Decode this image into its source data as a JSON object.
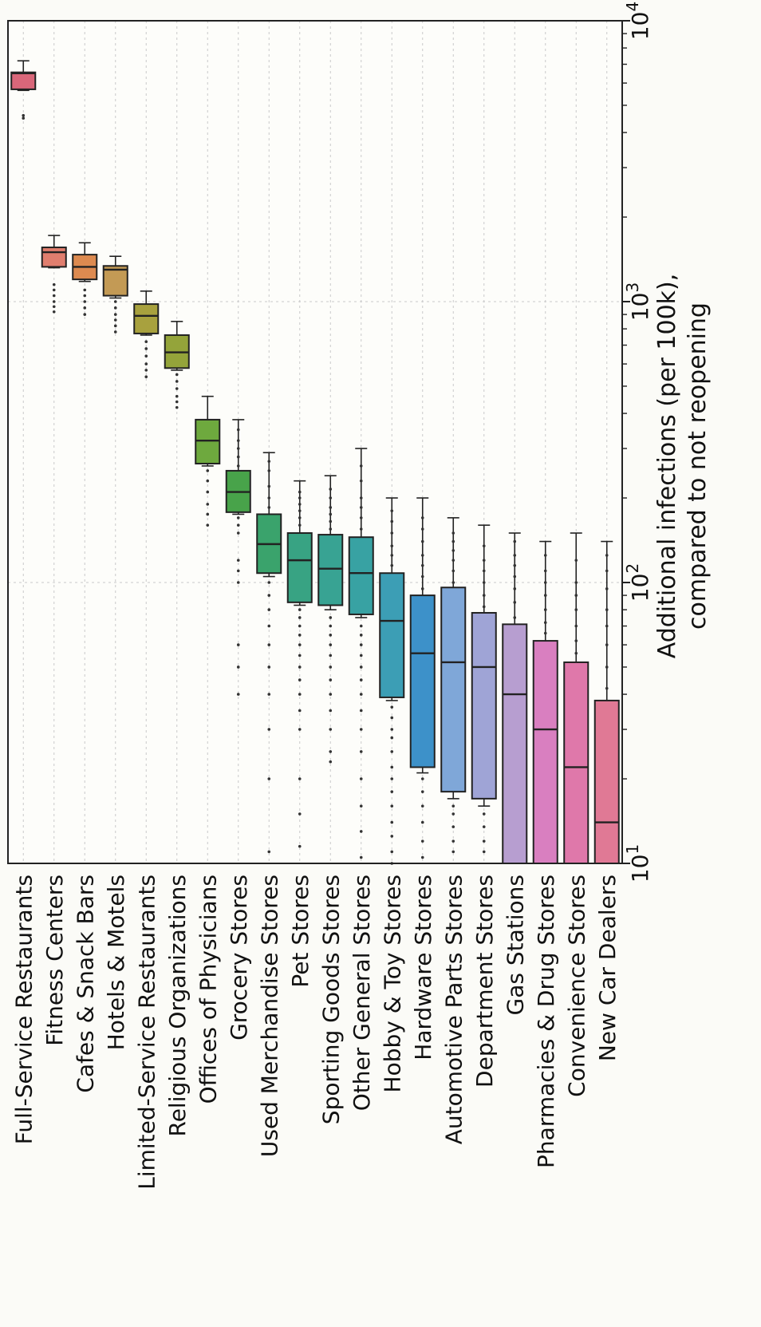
{
  "chart_data": {
    "type": "box",
    "orientation": "rotated-90-clockwise",
    "x_scale": "log",
    "xlim": [
      10,
      10000
    ],
    "xlabel_lines": [
      "Additional infections (per 100k),",
      "compared to not reopening"
    ],
    "ticks": [
      {
        "value": 10,
        "base": "10",
        "exp": "1"
      },
      {
        "value": 100,
        "base": "10",
        "exp": "2"
      },
      {
        "value": 1000,
        "base": "10",
        "exp": "3"
      },
      {
        "value": 10000,
        "base": "10",
        "exp": "4"
      }
    ],
    "grid": true,
    "categories": [
      {
        "label": "Full-Service Restaurants",
        "color": "#d9677a",
        "q1": 5700,
        "median": 6500,
        "q3": 6550,
        "whislo": 5650,
        "whishi": 7200,
        "fliers": [
          4500,
          4600
        ]
      },
      {
        "label": "Fitness Centers",
        "color": "#e07e6e",
        "q1": 1330,
        "median": 1500,
        "q3": 1560,
        "whislo": 1320,
        "whishi": 1720,
        "fliers": [
          920,
          960,
          1000,
          1050,
          1100,
          1150
        ]
      },
      {
        "label": "Cafes & Snack Bars",
        "color": "#dd8a50",
        "q1": 1200,
        "median": 1330,
        "q3": 1470,
        "whislo": 1180,
        "whishi": 1620,
        "fliers": [
          900,
          950,
          1000,
          1050,
          1100
        ]
      },
      {
        "label": "Hotels & Motels",
        "color": "#c39a55",
        "q1": 1050,
        "median": 1300,
        "q3": 1340,
        "whislo": 1030,
        "whishi": 1450,
        "fliers": [
          780,
          820,
          860,
          900,
          950,
          1000
        ]
      },
      {
        "label": "Limited-Service Restaurants",
        "color": "#a8a13e",
        "q1": 770,
        "median": 890,
        "q3": 980,
        "whislo": 760,
        "whishi": 1090,
        "fliers": [
          540,
          570,
          600,
          640,
          680,
          720
        ]
      },
      {
        "label": "Religious Organizations",
        "color": "#94a43a",
        "q1": 580,
        "median": 660,
        "q3": 760,
        "whislo": 570,
        "whishi": 850,
        "fliers": [
          420,
          440,
          460,
          490,
          520,
          550
        ]
      },
      {
        "label": "Offices of Physicians",
        "color": "#6ea93e",
        "q1": 265,
        "median": 320,
        "q3": 380,
        "whislo": 260,
        "whishi": 460,
        "fliers": [
          160,
          175,
          190,
          210,
          230,
          250
        ]
      },
      {
        "label": "Grocery Stores",
        "color": "#48a34a",
        "q1": 178,
        "median": 210,
        "q3": 250,
        "whislo": 175,
        "whishi": 380,
        "fliers": [
          40,
          50,
          60,
          100,
          110,
          120,
          150,
          160,
          170,
          260,
          280,
          300,
          320,
          350
        ]
      },
      {
        "label": "Used Merchandise Stores",
        "color": "#3aa36c",
        "q1": 108,
        "median": 137,
        "q3": 175,
        "whislo": 105,
        "whishi": 290,
        "fliers": [
          11,
          20,
          30,
          40,
          50,
          60,
          70,
          80,
          90,
          100,
          185,
          200,
          220,
          250,
          270
        ]
      },
      {
        "label": "Pet Stores",
        "color": "#38a383",
        "q1": 85,
        "median": 120,
        "q3": 150,
        "whislo": 83,
        "whishi": 230,
        "fliers": [
          11.5,
          15,
          20,
          30,
          35,
          40,
          45,
          50,
          55,
          60,
          65,
          70,
          75,
          80,
          160,
          170,
          180,
          190,
          200,
          210
        ]
      },
      {
        "label": "Sporting Goods Stores",
        "color": "#38a393",
        "q1": 83,
        "median": 112,
        "q3": 148,
        "whislo": 80,
        "whishi": 240,
        "fliers": [
          23,
          25,
          30,
          35,
          40,
          45,
          50,
          55,
          60,
          65,
          70,
          75,
          155,
          165,
          175,
          185,
          200,
          215
        ]
      },
      {
        "label": "Other General Stores",
        "color": "#38a2a3",
        "q1": 77,
        "median": 108,
        "q3": 145,
        "whislo": 75,
        "whishi": 300,
        "fliers": [
          10.5,
          13,
          16,
          20,
          25,
          30,
          35,
          40,
          45,
          50,
          55,
          60,
          65,
          70,
          155,
          170,
          185,
          200,
          230,
          260
        ]
      },
      {
        "label": "Hobby & Toy Stores",
        "color": "#3c9eb5",
        "q1": 39,
        "median": 73,
        "q3": 108,
        "whislo": 38,
        "whishi": 200,
        "fliers": [
          10,
          11,
          12.5,
          14,
          16,
          18,
          20,
          22,
          25,
          28,
          30,
          33,
          36,
          115,
          125,
          135,
          150,
          165,
          180
        ]
      },
      {
        "label": "Hardware Stores",
        "color": "#3d91c9",
        "q1": 22,
        "median": 56,
        "q3": 90,
        "whislo": 21,
        "whishi": 200,
        "fliers": [
          10.5,
          12,
          14,
          16,
          18,
          20,
          95,
          105,
          115,
          125,
          140,
          155,
          170
        ]
      },
      {
        "label": "Automotive Parts Stores",
        "color": "#7fa7d8",
        "q1": 18,
        "median": 52,
        "q3": 96,
        "whislo": 17,
        "whishi": 170,
        "fliers": [
          11,
          12,
          13.5,
          15,
          16,
          100,
          110,
          120,
          130,
          140,
          150
        ]
      },
      {
        "label": "Department Stores",
        "color": "#9fa4d6",
        "q1": 17,
        "median": 50,
        "q3": 78,
        "whislo": 16,
        "whishi": 160,
        "fliers": [
          11,
          12,
          13.5,
          15,
          82,
          90,
          100,
          110,
          120,
          135
        ]
      },
      {
        "label": "Gas Stations",
        "color": "#b79ed0",
        "q1": 10,
        "median": 40,
        "q3": 71,
        "whislo": 10,
        "whishi": 150,
        "fliers": [
          75,
          85,
          95,
          105,
          115,
          125,
          140
        ]
      },
      {
        "label": "Pharmacies & Drug Stores",
        "color": "#d97fc0",
        "q1": 10,
        "median": 30,
        "q3": 62,
        "whislo": 10,
        "whishi": 140,
        "fliers": [
          66,
          72,
          80,
          90,
          100,
          110,
          125
        ]
      },
      {
        "label": "Convenience Stores",
        "color": "#df78aa",
        "q1": 10,
        "median": 22,
        "q3": 52,
        "whislo": 10,
        "whishi": 150,
        "fliers": [
          56,
          62,
          70,
          80,
          90,
          100,
          120
        ]
      },
      {
        "label": "New Car Dealers",
        "color": "#e07995",
        "q1": 10,
        "median": 14,
        "q3": 38,
        "whislo": 10,
        "whishi": 140,
        "fliers": [
          42,
          50,
          60,
          70,
          80,
          95,
          110,
          125
        ]
      }
    ]
  }
}
